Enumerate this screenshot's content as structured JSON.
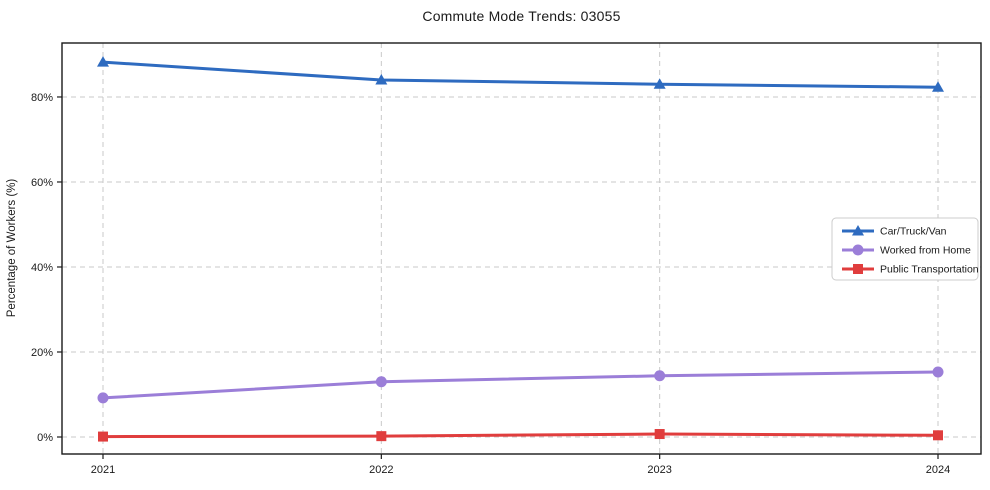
{
  "chart_data": {
    "type": "line",
    "title": "Commute Mode Trends: 03055",
    "xlabel": "",
    "ylabel": "Percentage of Workers (%)",
    "categories": [
      "2021",
      "2022",
      "2023",
      "2024"
    ],
    "series": [
      {
        "name": "Car/Truck/Van",
        "marker": "triangle",
        "color": "#2e6bc0",
        "values": [
          88.2,
          84.0,
          83.0,
          82.3
        ]
      },
      {
        "name": "Worked from Home",
        "marker": "circle",
        "color": "#9b7ed8",
        "values": [
          9.2,
          13.0,
          14.4,
          15.3
        ]
      },
      {
        "name": "Public Transportation",
        "marker": "square",
        "color": "#e03d3d",
        "values": [
          0.1,
          0.2,
          0.7,
          0.4
        ]
      }
    ],
    "yticks": [
      0,
      20,
      40,
      60,
      80
    ],
    "ytick_suffix": "%",
    "ylim": [
      -4.0,
      92.7
    ],
    "grid": "dashed-both-axes",
    "legend_position": "right-middle",
    "colors": {
      "background": "#ffffff",
      "grid": "#c9c9c9",
      "axis": "#1a1a1a",
      "text": "#1a1a1a",
      "legend_border": "#cccccc",
      "legend_fill": "#ffffff"
    }
  }
}
